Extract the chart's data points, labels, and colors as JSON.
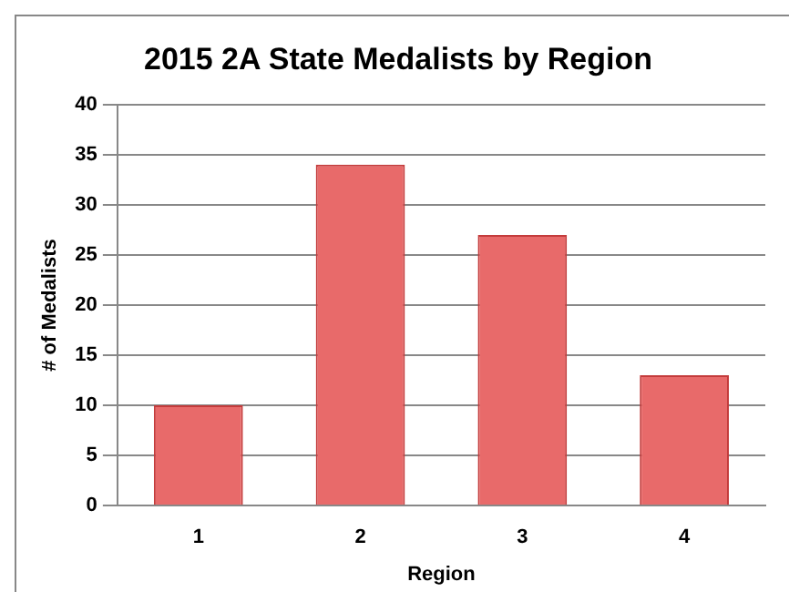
{
  "chart_data": {
    "type": "bar",
    "title": "2015 2A State Medalists by Region",
    "xlabel": "Region",
    "ylabel": "# of Medalists",
    "categories": [
      "1",
      "2",
      "3",
      "4"
    ],
    "values": [
      10,
      34,
      27,
      13
    ],
    "color": "#e86a6a",
    "ylim": [
      0,
      40
    ],
    "yticks": [
      0,
      5,
      10,
      15,
      20,
      25,
      30,
      35,
      40
    ],
    "grid": "y",
    "legend": false
  }
}
